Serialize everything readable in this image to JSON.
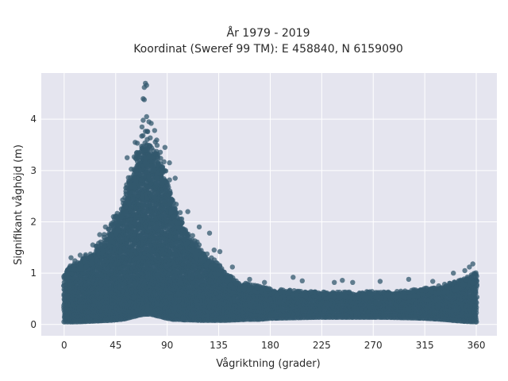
{
  "chart_data": {
    "type": "scatter",
    "title_line1": "År 1979 - 2019",
    "title_line2": "Koordinat (Sweref 99 TM): E 458840, N 6159090",
    "xlabel": "Vågriktning (grader)",
    "ylabel": "Signifikant våghöjd (m)",
    "xlim": [
      -20,
      378
    ],
    "ylim": [
      -0.22,
      4.9
    ],
    "xticks": [
      0,
      45,
      90,
      135,
      180,
      225,
      270,
      315,
      360
    ],
    "yticks": [
      0,
      1,
      2,
      3,
      4
    ],
    "grid": true,
    "colors": {
      "background": "#e5e5ef",
      "grid": "#ffffff",
      "point": "#33586e"
    },
    "envelope": {
      "description_x": [
        0,
        10,
        20,
        30,
        40,
        50,
        55,
        60,
        65,
        70,
        75,
        80,
        85,
        90,
        95,
        100,
        105,
        110,
        120,
        130,
        140,
        150,
        160,
        170,
        180,
        200,
        220,
        240,
        260,
        280,
        300,
        315,
        330,
        340,
        350,
        360
      ],
      "upper_y": [
        1.0,
        1.2,
        1.3,
        1.5,
        1.8,
        2.2,
        2.6,
        3.0,
        3.4,
        3.6,
        3.5,
        3.4,
        3.2,
        2.8,
        2.4,
        2.1,
        1.9,
        1.7,
        1.4,
        1.2,
        1.0,
        0.8,
        0.75,
        0.7,
        0.65,
        0.62,
        0.6,
        0.6,
        0.6,
        0.6,
        0.62,
        0.66,
        0.72,
        0.78,
        0.85,
        0.95
      ],
      "lower_y": [
        0.05,
        0.05,
        0.06,
        0.07,
        0.08,
        0.1,
        0.12,
        0.15,
        0.18,
        0.2,
        0.2,
        0.18,
        0.15,
        0.12,
        0.1,
        0.1,
        0.09,
        0.09,
        0.08,
        0.08,
        0.08,
        0.09,
        0.1,
        0.1,
        0.12,
        0.13,
        0.14,
        0.14,
        0.14,
        0.14,
        0.13,
        0.12,
        0.1,
        0.08,
        0.06,
        0.05
      ]
    },
    "outliers": [
      {
        "x": 71,
        "y": 4.7
      },
      {
        "x": 70,
        "y": 4.62
      },
      {
        "x": 72,
        "y": 4.66
      },
      {
        "x": 69,
        "y": 4.4
      },
      {
        "x": 70,
        "y": 4.38
      },
      {
        "x": 72,
        "y": 4.05
      },
      {
        "x": 69,
        "y": 3.98
      },
      {
        "x": 74,
        "y": 3.95
      },
      {
        "x": 76,
        "y": 3.92
      },
      {
        "x": 79,
        "y": 3.78
      },
      {
        "x": 68,
        "y": 3.85
      },
      {
        "x": 62,
        "y": 3.55
      },
      {
        "x": 55,
        "y": 3.25
      },
      {
        "x": 88,
        "y": 3.45
      },
      {
        "x": 92,
        "y": 3.15
      },
      {
        "x": 97,
        "y": 2.85
      },
      {
        "x": 60,
        "y": 2.45
      },
      {
        "x": 54,
        "y": 2.55
      },
      {
        "x": 50,
        "y": 2.25
      },
      {
        "x": 43,
        "y": 2.1
      },
      {
        "x": 108,
        "y": 2.2
      },
      {
        "x": 118,
        "y": 1.9
      },
      {
        "x": 127,
        "y": 1.78
      },
      {
        "x": 36,
        "y": 1.9
      },
      {
        "x": 31,
        "y": 1.75
      },
      {
        "x": 25,
        "y": 1.55
      },
      {
        "x": 14,
        "y": 1.35
      },
      {
        "x": 6,
        "y": 1.3
      },
      {
        "x": 131,
        "y": 1.45
      },
      {
        "x": 136,
        "y": 1.42
      },
      {
        "x": 147,
        "y": 1.12
      },
      {
        "x": 175,
        "y": 0.82
      },
      {
        "x": 200,
        "y": 0.92
      },
      {
        "x": 208,
        "y": 0.85
      },
      {
        "x": 236,
        "y": 0.82
      },
      {
        "x": 243,
        "y": 0.86
      },
      {
        "x": 252,
        "y": 0.82
      },
      {
        "x": 276,
        "y": 0.84
      },
      {
        "x": 301,
        "y": 0.88
      },
      {
        "x": 322,
        "y": 0.84
      },
      {
        "x": 340,
        "y": 1.0
      },
      {
        "x": 350,
        "y": 1.05
      },
      {
        "x": 357,
        "y": 1.18
      },
      {
        "x": 354,
        "y": 1.12
      },
      {
        "x": 162,
        "y": 0.88
      }
    ]
  }
}
